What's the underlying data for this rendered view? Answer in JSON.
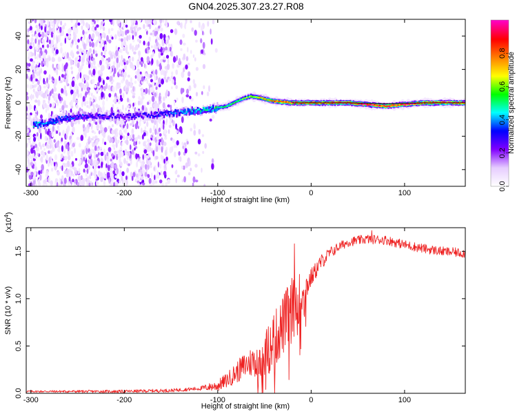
{
  "title": "GN04.2025.307.23.27.R08",
  "chart_data": [
    {
      "type": "heatmap",
      "name": "spectrogram",
      "xlabel": "Height of straight line (km)",
      "ylabel": "Frequency (Hz)",
      "xlim": [
        -305,
        165
      ],
      "ylim": [
        -50,
        50
      ],
      "xticks": [
        -300,
        -200,
        -100,
        0,
        100
      ],
      "yticks": [
        -40,
        -20,
        0,
        20,
        40
      ],
      "colorbar": {
        "label": "Normalized spectral amplitude",
        "range": [
          0.0,
          1.0
        ],
        "ticks": [
          0.0,
          0.2,
          0.4,
          0.6,
          0.8
        ],
        "tick_labels": [
          "0.0",
          "0.2",
          "0.4",
          "0.6",
          "0.8"
        ],
        "colormap": [
          "#ffffff",
          "#e6ccff",
          "#8000ff",
          "#0000ff",
          "#00ffff",
          "#00ff00",
          "#ffff00",
          "#ff8000",
          "#ff0000",
          "#ff00c0"
        ]
      },
      "ridge": [
        {
          "x": -290,
          "f": -13,
          "a": 0.45
        },
        {
          "x": -270,
          "f": -10,
          "a": 0.4
        },
        {
          "x": -250,
          "f": -8,
          "a": 0.35
        },
        {
          "x": -220,
          "f": -8,
          "a": 0.3
        },
        {
          "x": -190,
          "f": -8,
          "a": 0.3
        },
        {
          "x": -160,
          "f": -7,
          "a": 0.35
        },
        {
          "x": -130,
          "f": -5,
          "a": 0.45
        },
        {
          "x": -110,
          "f": -4,
          "a": 0.5
        },
        {
          "x": -90,
          "f": -2,
          "a": 0.55
        },
        {
          "x": -75,
          "f": 2,
          "a": 0.6
        },
        {
          "x": -65,
          "f": 4,
          "a": 0.65
        },
        {
          "x": -55,
          "f": 3,
          "a": 0.7
        },
        {
          "x": -40,
          "f": 1,
          "a": 0.8
        },
        {
          "x": -20,
          "f": 0,
          "a": 0.9
        },
        {
          "x": 0,
          "f": 0,
          "a": 0.9
        },
        {
          "x": 40,
          "f": 0,
          "a": 0.95
        },
        {
          "x": 80,
          "f": -2,
          "a": 0.9
        },
        {
          "x": 120,
          "f": 0,
          "a": 0.95
        },
        {
          "x": 165,
          "f": 0,
          "a": 0.95
        }
      ]
    },
    {
      "type": "line",
      "name": "snr",
      "xlabel": "Height of straight line (km)",
      "ylabel": "SNR (10 * v/v)",
      "scale_label": "(x10",
      "scale_exp": "4",
      "xlim": [
        -305,
        165
      ],
      "ylim": [
        0,
        1.75
      ],
      "xticks": [
        -300,
        -200,
        -100,
        0,
        100
      ],
      "yticks": [
        0.0,
        0.5,
        1.0,
        1.5
      ],
      "ytick_labels": [
        "0.0",
        "0.5",
        "1.0",
        "1.5"
      ],
      "color": "#ee2222",
      "series": [
        {
          "x": -305,
          "y": 0.02
        },
        {
          "x": -250,
          "y": 0.02
        },
        {
          "x": -200,
          "y": 0.02
        },
        {
          "x": -150,
          "y": 0.03
        },
        {
          "x": -120,
          "y": 0.05
        },
        {
          "x": -100,
          "y": 0.08
        },
        {
          "x": -90,
          "y": 0.14
        },
        {
          "x": -80,
          "y": 0.22
        },
        {
          "x": -70,
          "y": 0.3
        },
        {
          "x": -60,
          "y": 0.35
        },
        {
          "x": -50,
          "y": 0.4
        },
        {
          "x": -40,
          "y": 0.55
        },
        {
          "x": -30,
          "y": 0.72
        },
        {
          "x": -20,
          "y": 0.9
        },
        {
          "x": -10,
          "y": 1.05
        },
        {
          "x": 0,
          "y": 1.22
        },
        {
          "x": 10,
          "y": 1.38
        },
        {
          "x": 20,
          "y": 1.48
        },
        {
          "x": 30,
          "y": 1.55
        },
        {
          "x": 40,
          "y": 1.6
        },
        {
          "x": 60,
          "y": 1.63
        },
        {
          "x": 80,
          "y": 1.62
        },
        {
          "x": 100,
          "y": 1.57
        },
        {
          "x": 120,
          "y": 1.53
        },
        {
          "x": 140,
          "y": 1.5
        },
        {
          "x": 165,
          "y": 1.48
        }
      ],
      "noise": [
        {
          "x": -305,
          "amp": 0.01
        },
        {
          "x": -120,
          "amp": 0.02
        },
        {
          "x": -90,
          "amp": 0.08
        },
        {
          "x": -60,
          "amp": 0.18
        },
        {
          "x": -40,
          "amp": 0.3
        },
        {
          "x": -20,
          "amp": 0.35
        },
        {
          "x": 0,
          "amp": 0.1
        },
        {
          "x": 30,
          "amp": 0.05
        },
        {
          "x": 165,
          "amp": 0.05
        }
      ],
      "peaks": [
        {
          "x": -40,
          "y": 0.82
        },
        {
          "x": -30,
          "y": 0.98
        },
        {
          "x": -18,
          "y": 1.58
        },
        {
          "x": 65,
          "y": 1.72
        }
      ]
    }
  ]
}
